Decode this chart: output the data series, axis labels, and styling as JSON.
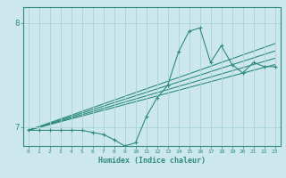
{
  "title": "",
  "xlabel": "Humidex (Indice chaleur)",
  "bg_color": "#cce8ec",
  "line_color": "#2e8b7a",
  "grid_color": "#aad4d8",
  "xlim": [
    -0.5,
    23.5
  ],
  "ylim": [
    6.82,
    8.15
  ],
  "yticks": [
    7,
    8
  ],
  "xticks": [
    0,
    1,
    2,
    3,
    4,
    5,
    6,
    7,
    8,
    9,
    10,
    11,
    12,
    13,
    14,
    15,
    16,
    17,
    18,
    19,
    20,
    21,
    22,
    23
  ],
  "data_line": {
    "x": [
      0,
      1,
      2,
      3,
      4,
      5,
      6,
      7,
      8,
      9,
      10,
      11,
      12,
      13,
      14,
      15,
      16,
      17,
      18,
      19,
      20,
      21,
      22,
      23
    ],
    "y": [
      6.97,
      6.97,
      6.97,
      6.97,
      6.97,
      6.97,
      6.95,
      6.93,
      6.88,
      6.82,
      6.85,
      7.1,
      7.28,
      7.4,
      7.72,
      7.92,
      7.95,
      7.62,
      7.78,
      7.6,
      7.52,
      7.62,
      7.58,
      7.58
    ]
  },
  "trend_lines": [
    {
      "x": [
        0,
        23
      ],
      "y": [
        6.97,
        7.6
      ]
    },
    {
      "x": [
        0,
        23
      ],
      "y": [
        6.97,
        7.66
      ]
    },
    {
      "x": [
        0,
        23
      ],
      "y": [
        6.97,
        7.73
      ]
    },
    {
      "x": [
        0,
        23
      ],
      "y": [
        6.97,
        7.8
      ]
    }
  ]
}
